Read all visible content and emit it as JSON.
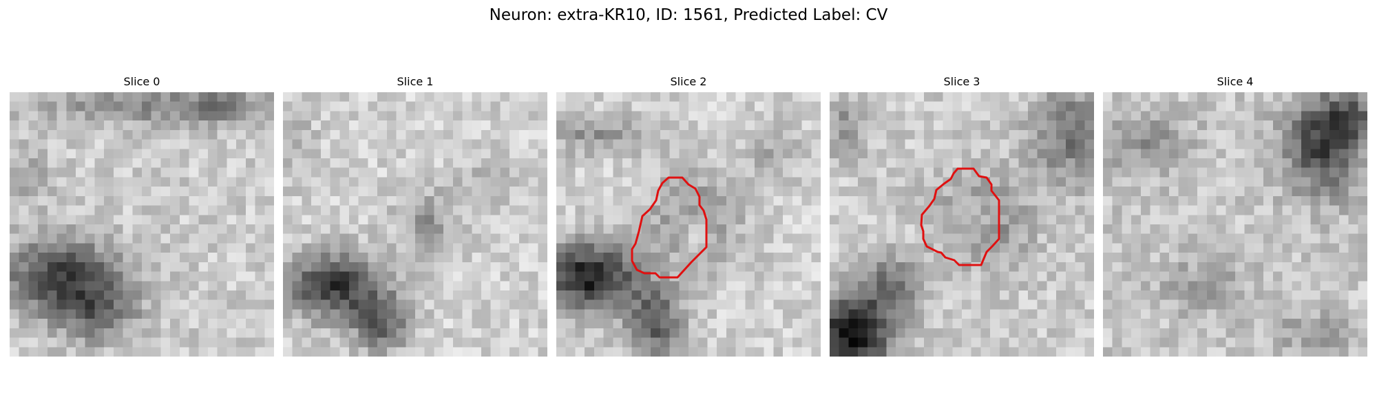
{
  "figure": {
    "title": "Neuron: extra-KR10, ID: 1561, Predicted Label: CV"
  },
  "panels": [
    {
      "title": "Slice 0"
    },
    {
      "title": "Slice 1"
    },
    {
      "title": "Slice 2"
    },
    {
      "title": "Slice 3"
    },
    {
      "title": "Slice 4"
    }
  ],
  "colors": {
    "contour": "#e01010",
    "background": "#ffffff",
    "colormap": "grayscale"
  }
}
